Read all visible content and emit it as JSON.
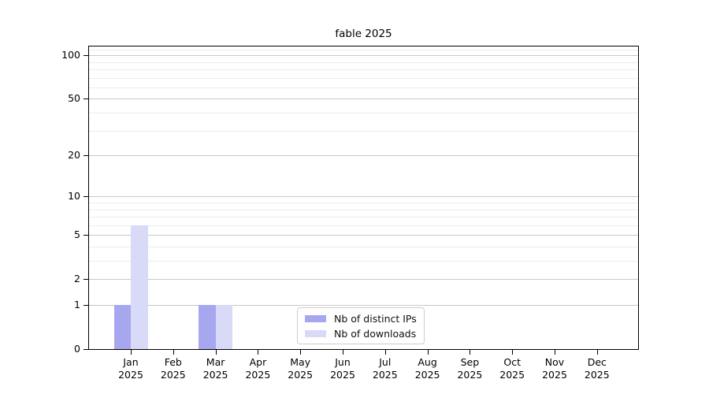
{
  "chart_data": {
    "type": "bar",
    "title": "fable 2025",
    "categories": [
      "Jan",
      "Feb",
      "Mar",
      "Apr",
      "May",
      "Jun",
      "Jul",
      "Aug",
      "Sep",
      "Oct",
      "Nov",
      "Dec"
    ],
    "category_year": "2025",
    "series": [
      {
        "name": "Nb of distinct IPs",
        "color": "#a7a7f0",
        "values": [
          1,
          0,
          1,
          0,
          0,
          0,
          0,
          0,
          0,
          0,
          0,
          0
        ]
      },
      {
        "name": "Nb of downloads",
        "color": "#d9d9f8",
        "values": [
          6,
          0,
          1,
          0,
          0,
          0,
          0,
          0,
          0,
          0,
          0,
          0
        ]
      }
    ],
    "yscale": "log1p",
    "yticks": [
      0,
      1,
      2,
      5,
      10,
      20,
      50,
      100
    ],
    "minor_yticks": [
      3,
      4,
      6,
      7,
      8,
      9,
      30,
      40,
      60,
      70,
      80,
      90,
      110
    ],
    "ylim": [
      0,
      115
    ],
    "grid": true,
    "legend_position": "inside-bottom-center",
    "colors": {
      "major_grid": "#c8c8c8",
      "minor_grid": "#ececec",
      "axis": "#000000",
      "background": "#ffffff"
    }
  }
}
